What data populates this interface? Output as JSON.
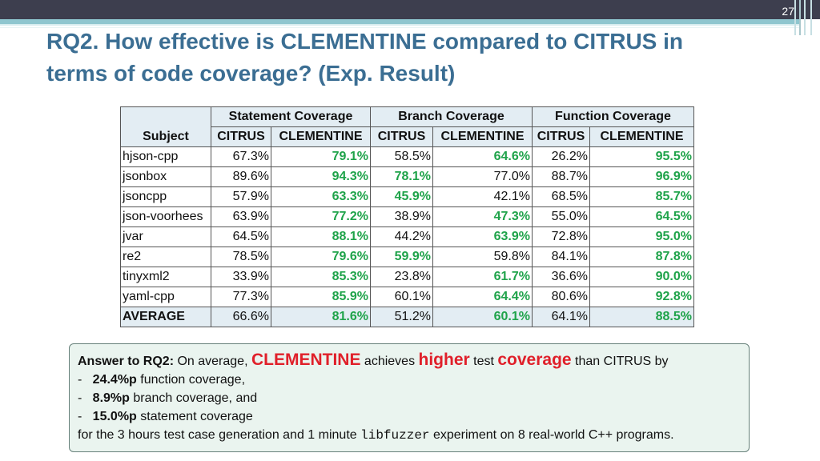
{
  "page_number": "27",
  "title": {
    "line1": "RQ2. How effective is CLEMENTINE compared to CITRUS in",
    "line2": "terms of code coverage? (Exp. Result)"
  },
  "table": {
    "group_headers": [
      "Statement Coverage",
      "Branch Coverage",
      "Function Coverage"
    ],
    "subject_header": "Subject",
    "sub_headers": [
      "CITRUS",
      "CLEMENTINE",
      "CITRUS",
      "CLEMENTINE",
      "CITRUS",
      "CLEMENTINE"
    ],
    "rows": [
      {
        "subject": "hjson-cpp",
        "values": [
          "67.3%",
          "79.1%",
          "58.5%",
          "64.6%",
          "26.2%",
          "95.5%"
        ],
        "better": [
          false,
          true,
          false,
          true,
          false,
          true
        ]
      },
      {
        "subject": "jsonbox",
        "values": [
          "89.6%",
          "94.3%",
          "78.1%",
          "77.0%",
          "88.7%",
          "96.9%"
        ],
        "better": [
          false,
          true,
          true,
          false,
          false,
          true
        ]
      },
      {
        "subject": "jsoncpp",
        "values": [
          "57.9%",
          "63.3%",
          "45.9%",
          "42.1%",
          "68.5%",
          "85.7%"
        ],
        "better": [
          false,
          true,
          true,
          false,
          false,
          true
        ]
      },
      {
        "subject": "json-voorhees",
        "values": [
          "63.9%",
          "77.2%",
          "38.9%",
          "47.3%",
          "55.0%",
          "64.5%"
        ],
        "better": [
          false,
          true,
          false,
          true,
          false,
          true
        ]
      },
      {
        "subject": "jvar",
        "values": [
          "64.5%",
          "88.1%",
          "44.2%",
          "63.9%",
          "72.8%",
          "95.0%"
        ],
        "better": [
          false,
          true,
          false,
          true,
          false,
          true
        ]
      },
      {
        "subject": "re2",
        "values": [
          "78.5%",
          "79.6%",
          "59.9%",
          "59.8%",
          "84.1%",
          "87.8%"
        ],
        "better": [
          false,
          true,
          true,
          false,
          false,
          true
        ]
      },
      {
        "subject": "tinyxml2",
        "values": [
          "33.9%",
          "85.3%",
          "23.8%",
          "61.7%",
          "36.6%",
          "90.0%"
        ],
        "better": [
          false,
          true,
          false,
          true,
          false,
          true
        ]
      },
      {
        "subject": "yaml-cpp",
        "values": [
          "77.3%",
          "85.9%",
          "60.1%",
          "64.4%",
          "80.6%",
          "92.8%"
        ],
        "better": [
          false,
          true,
          false,
          true,
          false,
          true
        ]
      },
      {
        "subject": "AVERAGE",
        "values": [
          "66.6%",
          "81.6%",
          "51.2%",
          "60.1%",
          "64.1%",
          "88.5%"
        ],
        "better": [
          false,
          true,
          false,
          true,
          false,
          true
        ]
      }
    ],
    "better_color": "#1fa34a"
  },
  "answer": {
    "label": "Answer to RQ2:",
    "intro": " On average, ",
    "clementine": "CLEMENTINE",
    "achieves": " achieves ",
    "higher": "higher",
    "test": " test ",
    "coverage": "coverage",
    "than": " than CITRUS by",
    "items": [
      {
        "dash": "-",
        "bold": "24.4%p",
        "text": " function coverage,"
      },
      {
        "dash": "-",
        "bold": "8.9%p",
        "text": " branch coverage, and"
      },
      {
        "dash": "-",
        "bold": "15.0%p",
        "text": " statement coverage"
      }
    ],
    "closing_pre": "for the 3 hours test case generation and 1 minute ",
    "closing_tool": "libfuzzer",
    "closing_post": " experiment on 8 real-world C++ programs."
  }
}
